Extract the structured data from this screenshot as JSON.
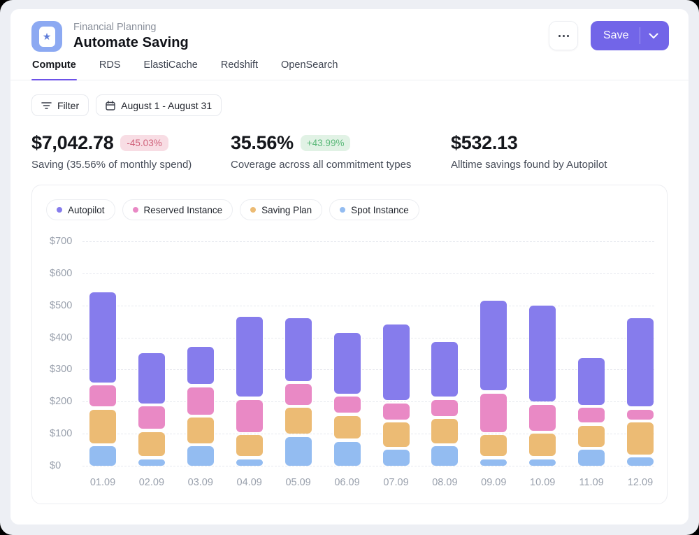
{
  "header": {
    "app_label": "Financial Planning",
    "title": "Automate Saving",
    "save_label": "Save"
  },
  "icons": {
    "app_star": "★",
    "more": "ellipsis-dots",
    "chevron_down": "v",
    "filter": "funnel-lines",
    "calendar": "calendar-grid"
  },
  "tabs": [
    {
      "label": "Compute",
      "active": true
    },
    {
      "label": "RDS",
      "active": false
    },
    {
      "label": "ElastiCache",
      "active": false
    },
    {
      "label": "Redshift",
      "active": false
    },
    {
      "label": "OpenSearch",
      "active": false
    }
  ],
  "toolbar": {
    "filter_label": "Filter",
    "date_range": "August 1 - August 31"
  },
  "stats": [
    {
      "value": "$7,042.78",
      "badge": "-45.03%",
      "badge_type": "negative",
      "label": "Saving (35.56% of monthly spend)"
    },
    {
      "value": "35.56%",
      "badge": "+43.99%",
      "badge_type": "positive",
      "label": "Coverage across all commitment types"
    },
    {
      "value": "$532.13",
      "badge": "",
      "badge_type": "",
      "label": "Alltime savings found by Autopilot"
    }
  ],
  "chart_data": {
    "type": "bar",
    "subtype": "stacked-vertical-rounded-segments",
    "title": "",
    "xlabel": "",
    "ylabel": "",
    "ylim": [
      0,
      700
    ],
    "y_tick_step": 100,
    "y_ticks": [
      "$0",
      "$100",
      "$200",
      "$300",
      "$400",
      "$500",
      "$600",
      "$700"
    ],
    "grid": "dashed horizontal",
    "legend_position": "top-left",
    "categories": [
      "01.09",
      "02.09",
      "03.09",
      "04.09",
      "05.09",
      "06.09",
      "07.09",
      "08.09",
      "09.09",
      "10.09",
      "11.09",
      "12.09"
    ],
    "stack_order_bottom_to_top": [
      "Spot Instance",
      "Saving Plan",
      "Reserved Instance",
      "Autopilot"
    ],
    "series": [
      {
        "name": "Autopilot",
        "color": "#867CEC",
        "values": [
          290,
          165,
          125,
          260,
          205,
          200,
          245,
          180,
          290,
          310,
          155,
          285
        ]
      },
      {
        "name": "Reserved Instance",
        "color": "#E989C5",
        "values": [
          75,
          80,
          95,
          110,
          75,
          60,
          60,
          60,
          130,
          90,
          55,
          40
        ]
      },
      {
        "name": "Saving Plan",
        "color": "#ECBB74",
        "values": [
          115,
          85,
          90,
          75,
          90,
          80,
          85,
          85,
          75,
          80,
          75,
          110
        ]
      },
      {
        "name": "Spot Instance",
        "color": "#93BCF1",
        "values": [
          70,
          30,
          70,
          30,
          100,
          85,
          60,
          70,
          30,
          30,
          60,
          35
        ]
      }
    ]
  },
  "colors": {
    "accent": "#7265E8",
    "tab_underline": "#6D52E8",
    "negative_badge_bg": "#F8DDE4",
    "negative_badge_text": "#CF6079",
    "positive_badge_bg": "#E1F2E5",
    "positive_badge_text": "#59B878",
    "axis_text": "#9AA1AD",
    "app_icon_bg": "#8CA9F2"
  }
}
